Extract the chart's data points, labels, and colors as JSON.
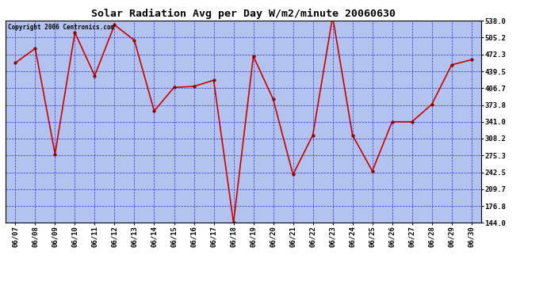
{
  "title": "Solar Radiation Avg per Day W/m2/minute 20060630",
  "copyright": "Copyright 2006 Centronics.com",
  "dates": [
    "06/07",
    "06/08",
    "06/09",
    "06/10",
    "06/11",
    "06/12",
    "06/13",
    "06/14",
    "06/15",
    "06/16",
    "06/17",
    "06/18",
    "06/19",
    "06/20",
    "06/21",
    "06/22",
    "06/23",
    "06/24",
    "06/25",
    "06/26",
    "06/27",
    "06/28",
    "06/29",
    "06/30"
  ],
  "values": [
    456,
    484,
    278,
    515,
    431,
    530,
    500,
    362,
    408,
    410,
    422,
    144,
    469,
    385,
    238,
    315,
    546,
    315,
    245,
    341,
    341,
    375,
    452,
    462
  ],
  "ylim": [
    144.0,
    538.0
  ],
  "yticks": [
    144.0,
    176.8,
    209.7,
    242.5,
    275.3,
    308.2,
    341.0,
    373.8,
    406.7,
    439.5,
    472.3,
    505.2,
    538.0
  ],
  "ytick_labels": [
    "144.0",
    "176.8",
    "209.7",
    "242.5",
    "275.3",
    "308.2",
    "341.0",
    "373.8",
    "406.7",
    "439.5",
    "472.3",
    "505.2",
    "538.0"
  ],
  "line_color": "#cc0000",
  "marker_color": "#880000",
  "bg_color": "#b3c3f0",
  "fig_bg": "#ffffff",
  "grid_color": "#3333cc",
  "title_color": "#000000",
  "border_color": "#000000",
  "copyright_color": "#000000",
  "tick_label_color": "#000000"
}
